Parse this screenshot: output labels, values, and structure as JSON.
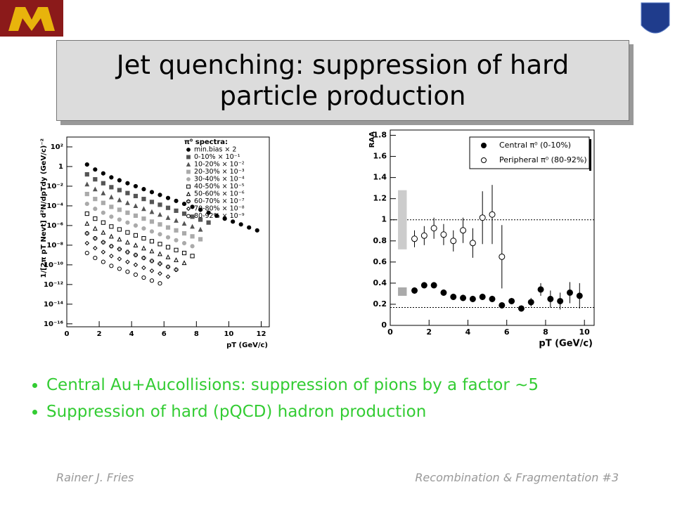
{
  "title": "Jet quenching: suppression of hard particle production",
  "bullets": [
    "Central Au+Aucollisions: suppression of pions by a factor ~5",
    "Suppression of hard (pQCD) hadron production"
  ],
  "footer": {
    "author": "Rainer J. Fries",
    "talk": "Recombination & Fragmentation  #3"
  },
  "chart_data": [
    {
      "type": "scatter",
      "log_y": true,
      "legend": "upper right",
      "legend_title": "π⁰ spectra:",
      "x_label": "pT (GeV/c)",
      "y_label": "1/[2π pT Nevt] d²N/dpTdy (GeV/c)⁻²",
      "xlim": [
        0,
        12.5
      ],
      "xticks": [
        0,
        2,
        4,
        6,
        8,
        10,
        12
      ],
      "ylim": [
        5e-17,
        1000
      ],
      "yticks": [
        {
          "value": 100,
          "label": "10²"
        },
        1,
        {
          "value": 0.01,
          "label": "10⁻²"
        },
        {
          "value": 0.0001,
          "label": "10⁻⁴"
        },
        {
          "value": 1e-06,
          "label": "10⁻⁶"
        },
        {
          "value": 1e-08,
          "label": "10⁻⁸"
        },
        {
          "value": 1e-10,
          "label": "10⁻¹⁰"
        },
        {
          "value": 1e-12,
          "label": "10⁻¹²"
        },
        {
          "value": 1e-14,
          "label": "10⁻¹⁴"
        },
        {
          "value": 1e-16,
          "label": "10⁻¹⁶"
        }
      ],
      "x": [
        1.25,
        1.75,
        2.25,
        2.75,
        3.25,
        3.75,
        4.25,
        4.75,
        5.25,
        5.75,
        6.25,
        6.75,
        7.25,
        7.75,
        8.25,
        8.75,
        9.25,
        9.75,
        10.25,
        10.75,
        11.25,
        11.75
      ],
      "series": [
        {
          "name": "min.bias  × 2",
          "marker": "circle",
          "open": false,
          "color": "#000000",
          "values": [
            1.6,
            0.5,
            0.2,
            0.079,
            0.04,
            0.02,
            0.01,
            0.005,
            0.0025,
            0.0013,
            0.00063,
            0.00032,
            0.00016,
            7.9e-05,
            4e-05,
            2e-05,
            1e-05,
            5e-06,
            2.5e-06,
            1.3e-06,
            6.3e-07,
            3.2e-07
          ]
        },
        {
          "name": "0-10%  × 10⁻¹",
          "marker": "square",
          "open": false,
          "color": "#555555",
          "values": [
            0.16,
            0.05,
            0.02,
            0.0079,
            0.004,
            0.002,
            0.001,
            0.0005,
            0.00025,
            0.00013,
            6.3e-05,
            3.2e-05,
            1.6e-05,
            7.9e-06,
            4e-06,
            2e-06,
            null,
            null,
            null,
            null,
            null,
            null
          ]
        },
        {
          "name": "10-20%  × 10⁻²",
          "marker": "triangle",
          "open": false,
          "color": "#555555",
          "values": [
            0.016,
            0.005,
            0.002,
            0.00079,
            0.0004,
            0.0002,
            0.0001,
            5e-05,
            2.5e-05,
            1.3e-05,
            6.3e-06,
            3.2e-06,
            1.6e-06,
            7.9e-07,
            4e-07,
            null,
            null,
            null,
            null,
            null,
            null,
            null
          ]
        },
        {
          "name": "20-30%  × 10⁻³",
          "marker": "square",
          "open": false,
          "color": "#aaaaaa",
          "values": [
            0.0016,
            0.0005,
            0.0002,
            7.9e-05,
            4e-05,
            2e-05,
            1e-05,
            5e-06,
            2.5e-06,
            1.3e-06,
            6.3e-07,
            3.2e-07,
            1.6e-07,
            7.9e-08,
            4e-08,
            null,
            null,
            null,
            null,
            null,
            null,
            null
          ]
        },
        {
          "name": "30-40%  × 10⁻⁴",
          "marker": "circle",
          "open": false,
          "color": "#aaaaaa",
          "values": [
            0.00016,
            5e-05,
            2e-05,
            7.9e-06,
            4e-06,
            2e-06,
            1e-06,
            5e-07,
            2.5e-07,
            1.3e-07,
            6.3e-08,
            3.2e-08,
            1.6e-08,
            7.9e-09,
            null,
            null,
            null,
            null,
            null,
            null,
            null,
            null
          ]
        },
        {
          "name": "40-50%  × 10⁻⁵",
          "marker": "square",
          "open": true,
          "color": "#000000",
          "values": [
            1.6e-05,
            5e-06,
            2e-06,
            7.9e-07,
            4e-07,
            2e-07,
            1e-07,
            5e-08,
            2.5e-08,
            1.3e-08,
            6.3e-09,
            3.2e-09,
            1.6e-09,
            7.9e-10,
            null,
            null,
            null,
            null,
            null,
            null,
            null,
            null
          ]
        },
        {
          "name": "50-60%  × 10⁻⁶",
          "marker": "triangle",
          "open": true,
          "color": "#000000",
          "values": [
            1.6e-06,
            5e-07,
            2e-07,
            7.9e-08,
            4e-08,
            2e-08,
            1e-08,
            5e-09,
            2.5e-09,
            1.3e-09,
            6.3e-10,
            3.2e-10,
            1.6e-10,
            null,
            null,
            null,
            null,
            null,
            null,
            null,
            null,
            null
          ]
        },
        {
          "name": "60-70%  × 10⁻⁷",
          "marker": "cross",
          "open": true,
          "color": "#000000",
          "values": [
            1.6e-07,
            5e-08,
            2e-08,
            7.9e-09,
            4e-09,
            2e-09,
            1e-09,
            5e-10,
            2.5e-10,
            1.3e-10,
            6.3e-11,
            3.2e-11,
            null,
            null,
            null,
            null,
            null,
            null,
            null,
            null,
            null,
            null
          ]
        },
        {
          "name": "70-80%  × 10⁻⁸",
          "marker": "diamond",
          "open": true,
          "color": "#000000",
          "values": [
            1.6e-08,
            5e-09,
            2e-09,
            7.9e-10,
            4e-10,
            2e-10,
            1e-10,
            5e-11,
            2.5e-11,
            1.3e-11,
            6.3e-12,
            null,
            null,
            null,
            null,
            null,
            null,
            null,
            null,
            null,
            null,
            null
          ]
        },
        {
          "name": "80-92%  × 10⁻⁹",
          "marker": "circle",
          "open": true,
          "color": "#000000",
          "values": [
            1.6e-09,
            5e-10,
            2e-10,
            7.9e-11,
            4e-11,
            2e-11,
            1e-11,
            5e-12,
            2.5e-12,
            1.3e-12,
            null,
            null,
            null,
            null,
            null,
            null,
            null,
            null,
            null,
            null,
            null,
            null
          ]
        }
      ]
    },
    {
      "type": "scatter",
      "log_y": false,
      "legend": "upper right",
      "x_label": "pT (GeV/c)",
      "y_label": "RAA",
      "xlim": [
        0,
        10.5
      ],
      "xticks": [
        0,
        2,
        4,
        6,
        8,
        10
      ],
      "ylim": [
        0,
        1.85
      ],
      "yticks": [
        0,
        0.2,
        0.4,
        0.6,
        0.8,
        1,
        1.2,
        1.4,
        1.6,
        1.8
      ],
      "hlines": [
        1,
        0.17
      ],
      "series": [
        {
          "name": "Central π⁰ (0-10%)",
          "marker": "circle",
          "open": false,
          "color": "#000000",
          "band": [
            0.28,
            0.36
          ],
          "x": [
            1.25,
            1.75,
            2.25,
            2.75,
            3.25,
            3.75,
            4.25,
            4.75,
            5.25,
            5.75,
            6.25,
            6.75,
            7.25,
            7.75,
            8.25,
            8.75,
            9.25,
            9.75
          ],
          "values": [
            0.33,
            0.38,
            0.38,
            0.31,
            0.27,
            0.26,
            0.25,
            0.27,
            0.25,
            0.19,
            0.23,
            0.16,
            0.22,
            0.34,
            0.25,
            0.23,
            0.31,
            0.28
          ],
          "errors": [
            0.03,
            0.03,
            0.03,
            0.03,
            0.03,
            0.03,
            0.03,
            0.03,
            0.03,
            0.03,
            0.03,
            0.03,
            0.04,
            0.06,
            0.08,
            0.08,
            0.1,
            0.12
          ]
        },
        {
          "name": "Peripheral π⁰ (80-92%)",
          "marker": "circle",
          "open": true,
          "color": "#000000",
          "band": [
            0.72,
            1.28
          ],
          "x": [
            1.25,
            1.75,
            2.25,
            2.75,
            3.25,
            3.75,
            4.25,
            4.75,
            5.25,
            5.75
          ],
          "values": [
            0.82,
            0.85,
            0.92,
            0.86,
            0.8,
            0.9,
            0.78,
            1.02,
            1.05,
            0.65
          ],
          "errors": [
            0.08,
            0.09,
            0.1,
            0.1,
            0.1,
            0.12,
            0.14,
            0.25,
            0.28,
            0.3
          ]
        }
      ]
    }
  ]
}
